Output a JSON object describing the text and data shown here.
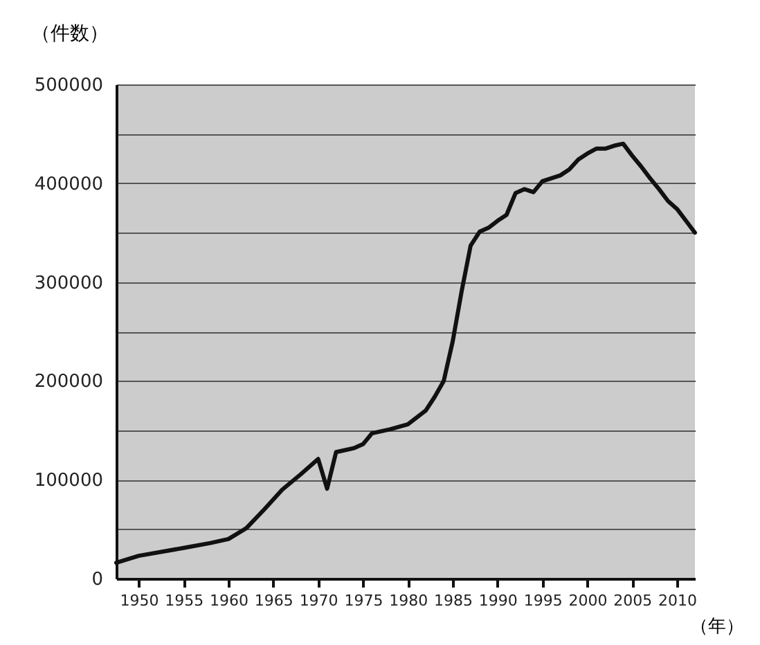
{
  "chart_data": {
    "type": "line",
    "ylabel": "（件数）",
    "xlabel": "（年）",
    "x": [
      1947.5,
      1950,
      1955,
      1958,
      1960,
      1962,
      1964,
      1966,
      1968,
      1970,
      1971,
      1972,
      1974,
      1975,
      1976,
      1978,
      1980,
      1981,
      1982,
      1983,
      1984,
      1985,
      1986,
      1987,
      1988,
      1989,
      1990,
      1991,
      1992,
      1993,
      1994,
      1995,
      1996,
      1997,
      1998,
      1999,
      2000,
      2001,
      2002,
      2003,
      2004,
      2005,
      2006,
      2007,
      2008,
      2009,
      2010,
      2011,
      2012
    ],
    "series": [
      {
        "color": "#111111",
        "values": [
          16000,
          23000,
          31000,
          36000,
          40000,
          51000,
          70000,
          90000,
          105000,
          121000,
          91000,
          128000,
          132000,
          136000,
          147000,
          151000,
          156000,
          163000,
          170000,
          184000,
          200000,
          240000,
          291000,
          337000,
          351000,
          355000,
          362000,
          368000,
          390000,
          394000,
          391000,
          402000,
          405000,
          408000,
          414000,
          424000,
          430000,
          435000,
          435000,
          438000,
          440000,
          428000,
          417000,
          405000,
          394000,
          382000,
          374000,
          362000,
          350000
        ]
      }
    ],
    "xlim": [
      1947.5,
      2012
    ],
    "xticks": [
      1950,
      1955,
      1960,
      1965,
      1970,
      1975,
      1980,
      1985,
      1990,
      1995,
      2000,
      2005,
      2010
    ],
    "ylim": [
      0,
      500000
    ],
    "yticks": [
      0,
      {
        "value": 50000,
        "label": null
      },
      100000,
      {
        "value": 150000,
        "label": null
      },
      200000,
      {
        "value": 250000,
        "label": null
      },
      300000,
      {
        "value": 350000,
        "label": null
      },
      400000,
      {
        "value": 450000,
        "label": null
      },
      500000
    ],
    "grid": "y",
    "marker": "none",
    "line_style": "solid",
    "legend": false
  }
}
